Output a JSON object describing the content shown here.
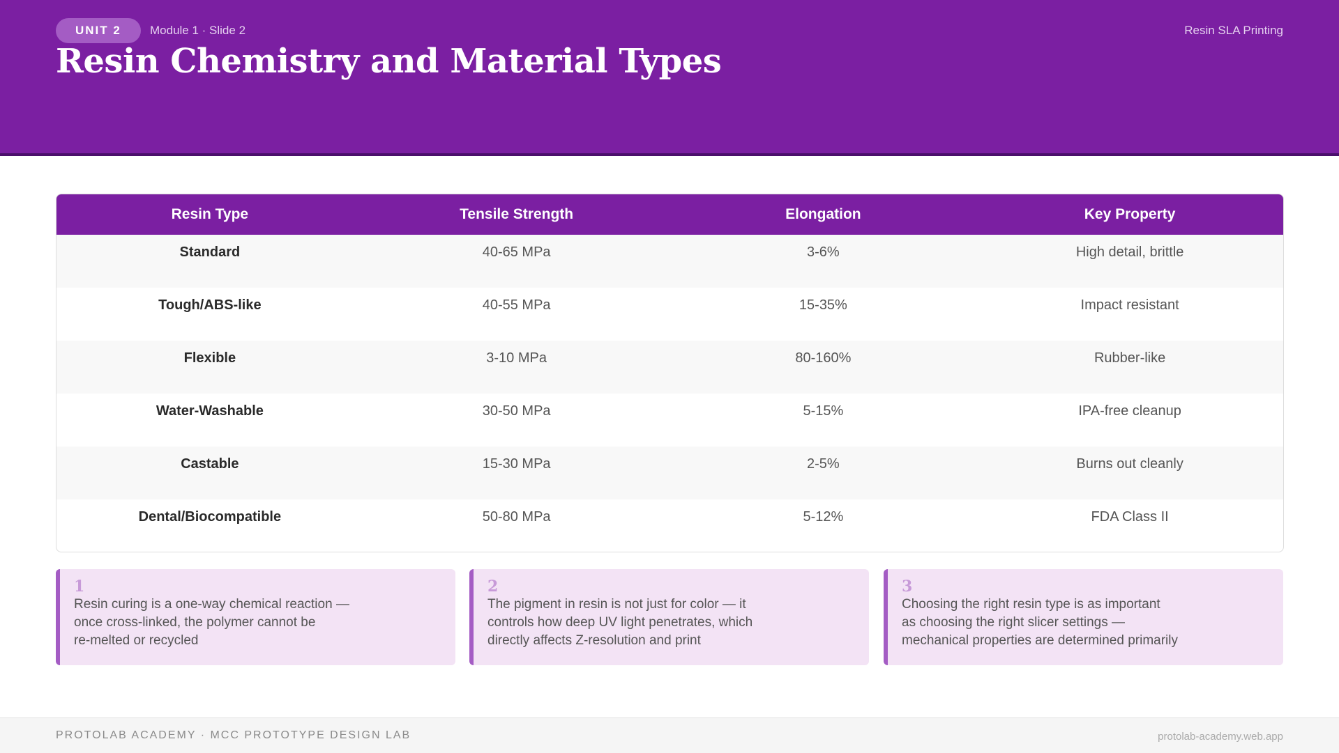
{
  "header": {
    "badge": "UNIT 2",
    "breadcrumb": "Module 1 · Slide 2",
    "topic": "Resin SLA Printing",
    "title": "Resin Chemistry and Material Types"
  },
  "table": {
    "columns": [
      "Resin Type",
      "Tensile Strength",
      "Elongation",
      "Key Property"
    ],
    "rows": [
      [
        "Standard",
        "40-65 MPa",
        "3-6%",
        "High detail, brittle"
      ],
      [
        "Tough/ABS-like",
        "40-55 MPa",
        "15-35%",
        "Impact resistant"
      ],
      [
        "Flexible",
        "3-10 MPa",
        "80-160%",
        "Rubber-like"
      ],
      [
        "Water-Washable",
        "30-50 MPa",
        "5-15%",
        "IPA-free cleanup"
      ],
      [
        "Castable",
        "15-30 MPa",
        "2-5%",
        "Burns out cleanly"
      ],
      [
        "Dental/Biocompatible",
        "50-80 MPa",
        "5-12%",
        "FDA Class II"
      ]
    ]
  },
  "cards": [
    {
      "number": "1",
      "text": "Resin curing is a one-way chemical reaction —\nonce cross-linked, the polymer cannot be\nre-melted or recycled"
    },
    {
      "number": "2",
      "text": "The pigment in resin is not just for color — it\ncontrols how deep UV light penetrates, which\ndirectly affects Z-resolution and print"
    },
    {
      "number": "3",
      "text": "Choosing the right resin type is as important\nas choosing the right slicer settings —\nmechanical properties are determined primarily"
    }
  ],
  "footer": {
    "left": "PROTOLAB ACADEMY · MCC PROTOTYPE DESIGN LAB",
    "right": "protolab-academy.web.app"
  }
}
